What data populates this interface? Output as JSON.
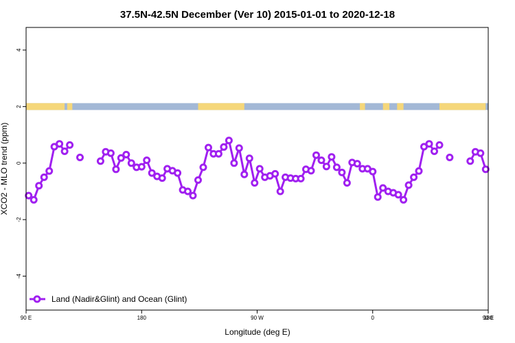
{
  "chart_data": {
    "type": "line",
    "title": "37.5N-42.5N December (Ver 10)   2015-01-01 to 2020-12-18",
    "xlabel": "Longitude (deg E)",
    "ylabel": "XCO2 - MLO trend (ppm)",
    "xlim": [
      90,
      450
    ],
    "ylim": [
      -5.2,
      4.8
    ],
    "xticks": [
      {
        "value": 90,
        "label": "90 E"
      },
      {
        "value": 180,
        "label": "180"
      },
      {
        "value": 270,
        "label": "90 W"
      },
      {
        "value": 360,
        "label": "0"
      },
      {
        "value": 450,
        "label": "90 E"
      },
      {
        "value": 540,
        "label": "180"
      }
    ],
    "yticks": [
      {
        "value": -4,
        "label": "-4"
      },
      {
        "value": -2,
        "label": "-2"
      },
      {
        "value": 0,
        "label": "0"
      },
      {
        "value": 2,
        "label": "2"
      },
      {
        "value": 4,
        "label": "4"
      }
    ],
    "grid": false,
    "legend_position": "bottom-left",
    "color": "#a020f0",
    "land_color": "#f5d77a",
    "ocean_color": "#a3b8d6",
    "series": [
      {
        "name": "Land (Nadir&Glint) and Ocean (Glint)",
        "segments": [
          [
            [
              92,
              -1.15
            ],
            [
              96,
              -1.3
            ],
            [
              100,
              -0.8
            ],
            [
              104,
              -0.5
            ],
            [
              108,
              -0.28
            ],
            [
              112,
              0.58
            ],
            [
              116,
              0.68
            ],
            [
              120,
              0.42
            ],
            [
              124,
              0.64
            ]
          ],
          [
            [
              132,
              0.2
            ]
          ],
          [
            [
              148,
              0.07
            ],
            [
              152,
              0.4
            ],
            [
              156,
              0.35
            ],
            [
              160,
              -0.22
            ],
            [
              164,
              0.18
            ],
            [
              168,
              0.3
            ],
            [
              172,
              0.0
            ],
            [
              176,
              -0.15
            ],
            [
              180,
              -0.13
            ],
            [
              184,
              0.1
            ],
            [
              188,
              -0.35
            ],
            [
              192,
              -0.47
            ],
            [
              196,
              -0.53
            ],
            [
              200,
              -0.2
            ],
            [
              204,
              -0.27
            ],
            [
              208,
              -0.35
            ],
            [
              212,
              -0.95
            ],
            [
              216,
              -1.0
            ],
            [
              220,
              -1.15
            ],
            [
              224,
              -0.6
            ],
            [
              228,
              -0.15
            ],
            [
              232,
              0.55
            ],
            [
              236,
              0.33
            ],
            [
              240,
              0.33
            ],
            [
              244,
              0.57
            ],
            [
              248,
              0.8
            ],
            [
              252,
              0.0
            ],
            [
              256,
              0.53
            ],
            [
              260,
              -0.4
            ],
            [
              264,
              0.17
            ],
            [
              268,
              -0.7
            ],
            [
              272,
              -0.2
            ],
            [
              276,
              -0.5
            ],
            [
              280,
              -0.45
            ],
            [
              284,
              -0.38
            ],
            [
              288,
              -1.0
            ],
            [
              292,
              -0.5
            ],
            [
              296,
              -0.53
            ],
            [
              300,
              -0.55
            ],
            [
              304,
              -0.55
            ],
            [
              308,
              -0.22
            ],
            [
              312,
              -0.27
            ],
            [
              316,
              0.28
            ],
            [
              320,
              0.1
            ],
            [
              324,
              -0.12
            ],
            [
              328,
              0.22
            ],
            [
              332,
              -0.15
            ],
            [
              336,
              -0.33
            ],
            [
              340,
              -0.7
            ],
            [
              344,
              0.02
            ],
            [
              348,
              -0.02
            ],
            [
              352,
              -0.2
            ],
            [
              356,
              -0.2
            ],
            [
              360,
              -0.3
            ],
            [
              364,
              -1.2
            ],
            [
              368,
              -0.88
            ],
            [
              372,
              -1.0
            ],
            [
              376,
              -1.05
            ],
            [
              380,
              -1.12
            ],
            [
              384,
              -1.3
            ],
            [
              388,
              -0.78
            ],
            [
              392,
              -0.5
            ],
            [
              396,
              -0.28
            ],
            [
              400,
              0.58
            ],
            [
              404,
              0.68
            ],
            [
              408,
              0.42
            ],
            [
              412,
              0.64
            ]
          ],
          [
            [
              420,
              0.2
            ]
          ],
          [
            [
              436,
              0.07
            ],
            [
              440,
              0.4
            ],
            [
              444,
              0.35
            ],
            [
              448,
              -0.22
            ]
          ]
        ]
      }
    ],
    "surface_strip": {
      "y": 2,
      "land_ranges": [
        [
          90,
          120
        ],
        [
          122,
          126
        ],
        [
          224,
          260
        ],
        [
          350,
          354
        ],
        [
          368,
          373
        ],
        [
          379,
          384
        ],
        [
          412,
          448
        ]
      ]
    }
  }
}
